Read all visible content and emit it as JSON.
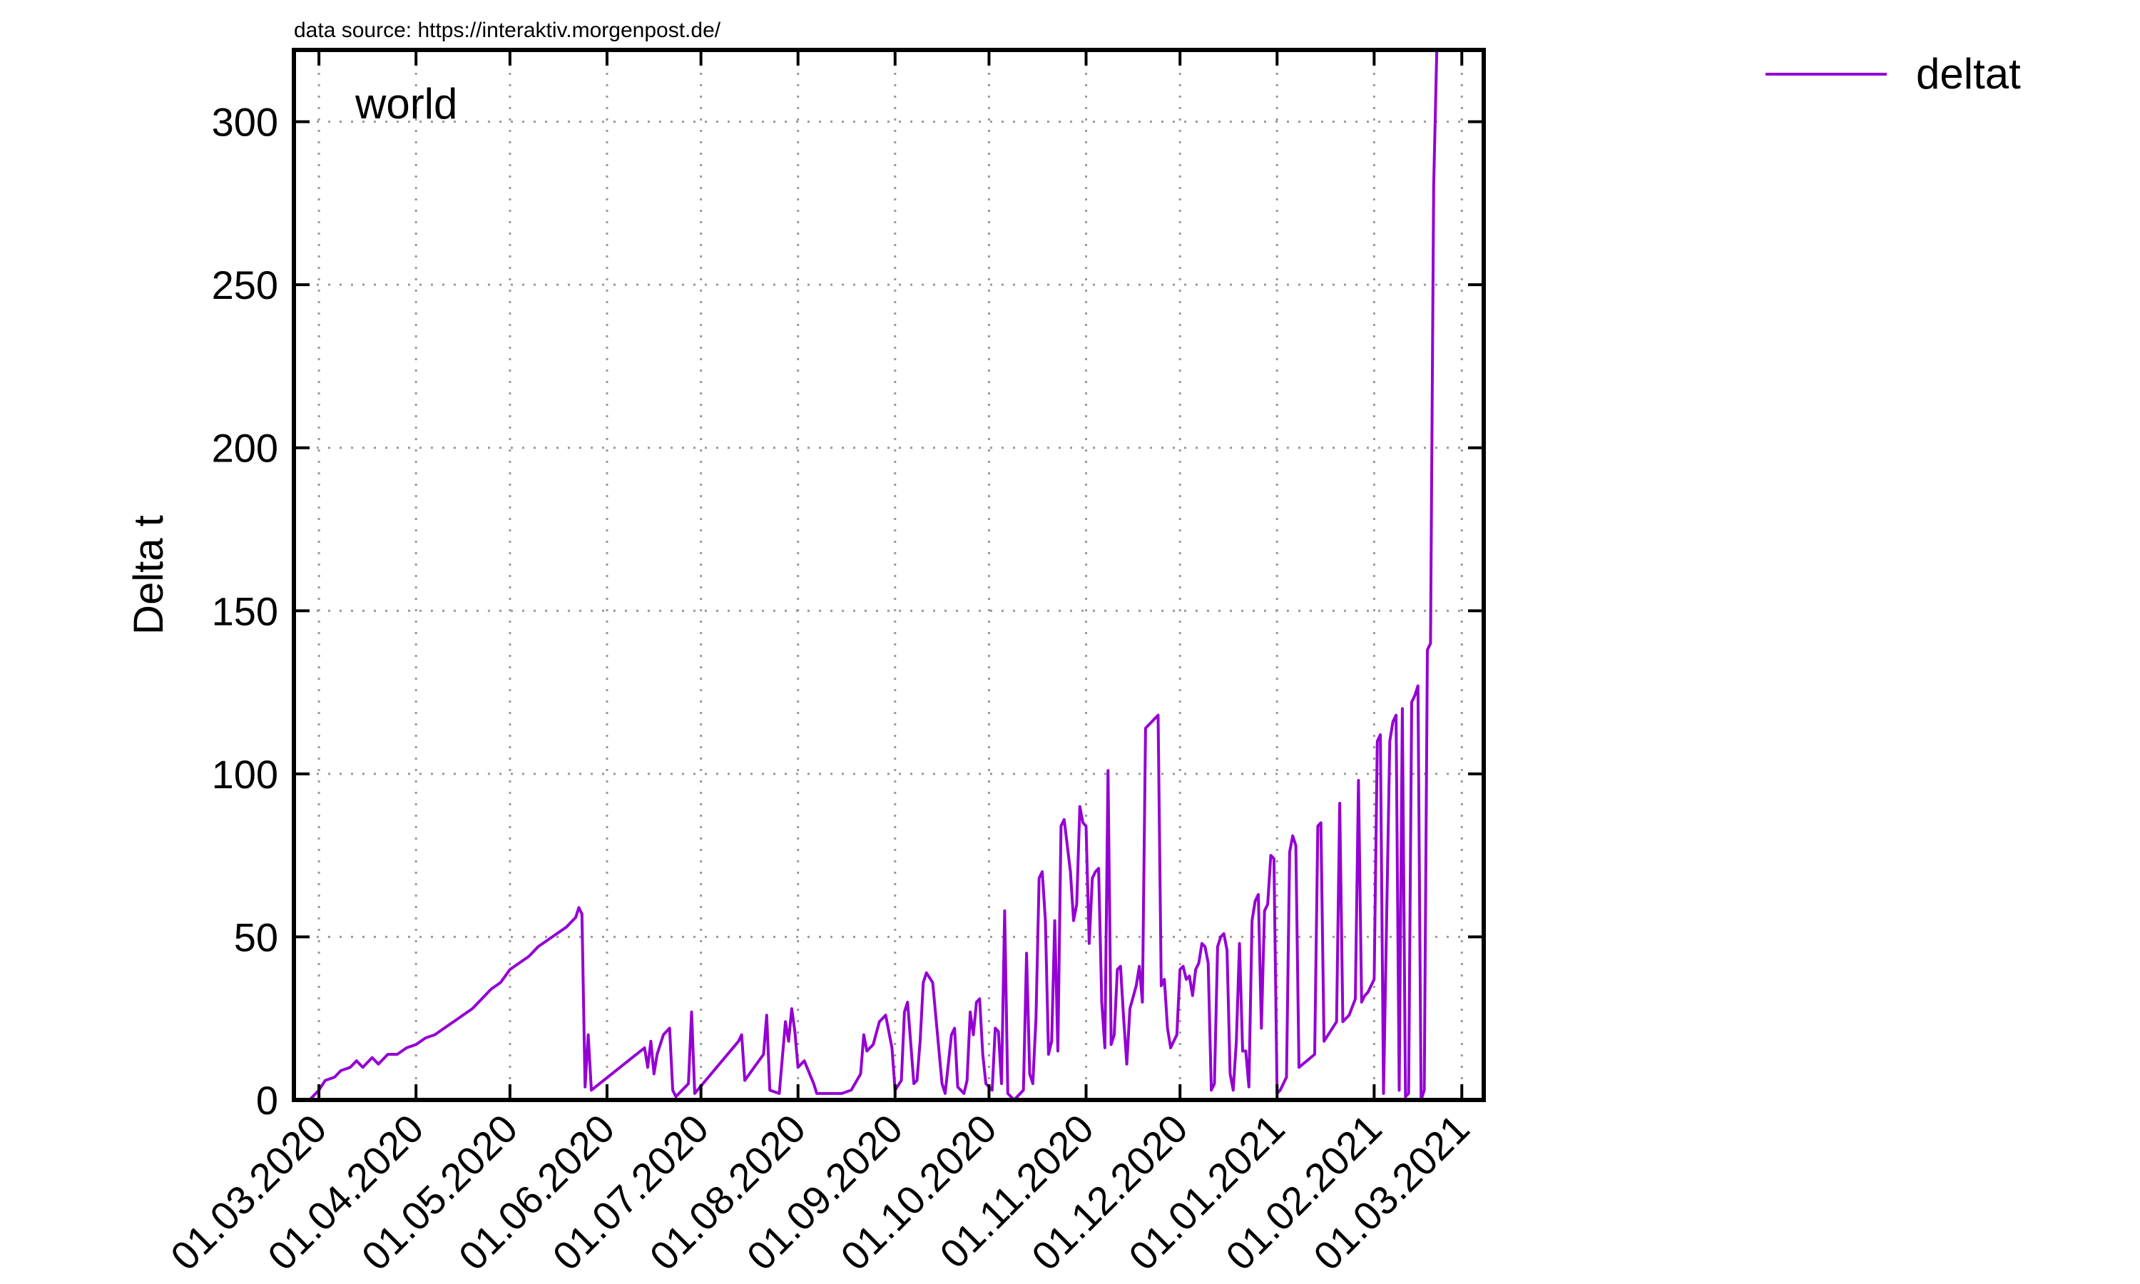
{
  "source_note": "data source: https://interaktiv.morgenpost.de/",
  "inset_label": "world",
  "chart_data": {
    "type": "line",
    "title": "",
    "xlabel": "",
    "ylabel": "Delta t",
    "x_type": "date",
    "xlim": [
      "2020-02-22",
      "2021-03-08"
    ],
    "ylim": [
      0,
      322
    ],
    "y_ticks": [
      0,
      50,
      100,
      150,
      200,
      250,
      300
    ],
    "x_tick_dates": [
      "2020-03-01",
      "2020-04-01",
      "2020-05-01",
      "2020-06-01",
      "2020-07-01",
      "2020-08-01",
      "2020-09-01",
      "2020-10-01",
      "2020-11-01",
      "2020-12-01",
      "2021-01-01",
      "2021-02-01",
      "2021-03-01"
    ],
    "x_tick_labels": [
      "01.03.2020",
      "01.04.2020",
      "01.05.2020",
      "01.06.2020",
      "01.07.2020",
      "01.08.2020",
      "01.09.2020",
      "01.10.2020",
      "01.11.2020",
      "01.12.2020",
      "01.01.2021",
      "01.02.2021",
      "01.03.2021"
    ],
    "grid": true,
    "grid_style": "dotted",
    "legend_position": "top-right, outside plot",
    "series": [
      {
        "name": "deltat",
        "color": "#9400d3",
        "points": [
          [
            "2020-02-27",
            0
          ],
          [
            "2020-03-01",
            3
          ],
          [
            "2020-03-03",
            6
          ],
          [
            "2020-03-06",
            7
          ],
          [
            "2020-03-08",
            9
          ],
          [
            "2020-03-11",
            10
          ],
          [
            "2020-03-13",
            12
          ],
          [
            "2020-03-15",
            10
          ],
          [
            "2020-03-18",
            13
          ],
          [
            "2020-03-20",
            11
          ],
          [
            "2020-03-23",
            14
          ],
          [
            "2020-03-26",
            14
          ],
          [
            "2020-03-29",
            16
          ],
          [
            "2020-04-01",
            17
          ],
          [
            "2020-04-04",
            19
          ],
          [
            "2020-04-07",
            20
          ],
          [
            "2020-04-10",
            22
          ],
          [
            "2020-04-13",
            24
          ],
          [
            "2020-04-16",
            26
          ],
          [
            "2020-04-19",
            28
          ],
          [
            "2020-04-22",
            31
          ],
          [
            "2020-04-25",
            34
          ],
          [
            "2020-04-28",
            36
          ],
          [
            "2020-05-01",
            40
          ],
          [
            "2020-05-04",
            42
          ],
          [
            "2020-05-07",
            44
          ],
          [
            "2020-05-10",
            47
          ],
          [
            "2020-05-13",
            49
          ],
          [
            "2020-05-16",
            51
          ],
          [
            "2020-05-19",
            53
          ],
          [
            "2020-05-22",
            56
          ],
          [
            "2020-05-23",
            59
          ],
          [
            "2020-05-24",
            57
          ],
          [
            "2020-05-25",
            4
          ],
          [
            "2020-05-26",
            20
          ],
          [
            "2020-05-27",
            3
          ],
          [
            "2020-06-13",
            16
          ],
          [
            "2020-06-14",
            10
          ],
          [
            "2020-06-15",
            18
          ],
          [
            "2020-06-16",
            8
          ],
          [
            "2020-06-17",
            14
          ],
          [
            "2020-06-19",
            20
          ],
          [
            "2020-06-21",
            22
          ],
          [
            "2020-06-22",
            3
          ],
          [
            "2020-06-23",
            1
          ],
          [
            "2020-06-27",
            5
          ],
          [
            "2020-06-28",
            27
          ],
          [
            "2020-06-29",
            2
          ],
          [
            "2020-07-13",
            18
          ],
          [
            "2020-07-14",
            20
          ],
          [
            "2020-07-15",
            6
          ],
          [
            "2020-07-21",
            14
          ],
          [
            "2020-07-22",
            26
          ],
          [
            "2020-07-23",
            3
          ],
          [
            "2020-07-26",
            2
          ],
          [
            "2020-07-28",
            24
          ],
          [
            "2020-07-29",
            18
          ],
          [
            "2020-07-30",
            28
          ],
          [
            "2020-07-31",
            21
          ],
          [
            "2020-08-01",
            10
          ],
          [
            "2020-08-03",
            12
          ],
          [
            "2020-08-06",
            5
          ],
          [
            "2020-08-07",
            2
          ],
          [
            "2020-08-15",
            2
          ],
          [
            "2020-08-18",
            3
          ],
          [
            "2020-08-21",
            8
          ],
          [
            "2020-08-22",
            20
          ],
          [
            "2020-08-23",
            15
          ],
          [
            "2020-08-25",
            17
          ],
          [
            "2020-08-27",
            24
          ],
          [
            "2020-08-29",
            26
          ],
          [
            "2020-08-31",
            16
          ],
          [
            "2020-09-01",
            3
          ],
          [
            "2020-09-03",
            6
          ],
          [
            "2020-09-04",
            27
          ],
          [
            "2020-09-05",
            30
          ],
          [
            "2020-09-07",
            5
          ],
          [
            "2020-09-08",
            6
          ],
          [
            "2020-09-09",
            18
          ],
          [
            "2020-09-10",
            36
          ],
          [
            "2020-09-11",
            39
          ],
          [
            "2020-09-13",
            36
          ],
          [
            "2020-09-16",
            5
          ],
          [
            "2020-09-17",
            2
          ],
          [
            "2020-09-19",
            20
          ],
          [
            "2020-09-20",
            22
          ],
          [
            "2020-09-21",
            4
          ],
          [
            "2020-09-23",
            2
          ],
          [
            "2020-09-24",
            6
          ],
          [
            "2020-09-25",
            27
          ],
          [
            "2020-09-26",
            20
          ],
          [
            "2020-09-27",
            30
          ],
          [
            "2020-09-28",
            31
          ],
          [
            "2020-09-29",
            14
          ],
          [
            "2020-09-30",
            5
          ],
          [
            "2020-10-02",
            3
          ],
          [
            "2020-10-03",
            22
          ],
          [
            "2020-10-04",
            21
          ],
          [
            "2020-10-05",
            5
          ],
          [
            "2020-10-06",
            58
          ],
          [
            "2020-10-07",
            2
          ],
          [
            "2020-10-09",
            0
          ],
          [
            "2020-10-12",
            3
          ],
          [
            "2020-10-13",
            45
          ],
          [
            "2020-10-14",
            8
          ],
          [
            "2020-10-15",
            5
          ],
          [
            "2020-10-16",
            25
          ],
          [
            "2020-10-17",
            68
          ],
          [
            "2020-10-18",
            70
          ],
          [
            "2020-10-19",
            55
          ],
          [
            "2020-10-20",
            14
          ],
          [
            "2020-10-21",
            18
          ],
          [
            "2020-10-22",
            55
          ],
          [
            "2020-10-23",
            15
          ],
          [
            "2020-10-24",
            84
          ],
          [
            "2020-10-25",
            86
          ],
          [
            "2020-10-27",
            70
          ],
          [
            "2020-10-28",
            55
          ],
          [
            "2020-10-29",
            60
          ],
          [
            "2020-10-30",
            90
          ],
          [
            "2020-10-31",
            85
          ],
          [
            "2020-11-01",
            84
          ],
          [
            "2020-11-02",
            48
          ],
          [
            "2020-11-03",
            68
          ],
          [
            "2020-11-04",
            70
          ],
          [
            "2020-11-05",
            71
          ],
          [
            "2020-11-06",
            30
          ],
          [
            "2020-11-07",
            16
          ],
          [
            "2020-11-08",
            101
          ],
          [
            "2020-11-09",
            17
          ],
          [
            "2020-11-10",
            20
          ],
          [
            "2020-11-11",
            40
          ],
          [
            "2020-11-12",
            41
          ],
          [
            "2020-11-13",
            25
          ],
          [
            "2020-11-14",
            11
          ],
          [
            "2020-11-15",
            28
          ],
          [
            "2020-11-17",
            35
          ],
          [
            "2020-11-18",
            41
          ],
          [
            "2020-11-19",
            30
          ],
          [
            "2020-11-20",
            114
          ],
          [
            "2020-11-21",
            115
          ],
          [
            "2020-11-22",
            116
          ],
          [
            "2020-11-23",
            117
          ],
          [
            "2020-11-24",
            118
          ],
          [
            "2020-11-25",
            35
          ],
          [
            "2020-11-26",
            37
          ],
          [
            "2020-11-27",
            22
          ],
          [
            "2020-11-28",
            16
          ],
          [
            "2020-11-29",
            18
          ],
          [
            "2020-11-30",
            20
          ],
          [
            "2020-12-01",
            40
          ],
          [
            "2020-12-02",
            41
          ],
          [
            "2020-12-03",
            37
          ],
          [
            "2020-12-04",
            38
          ],
          [
            "2020-12-05",
            32
          ],
          [
            "2020-12-06",
            40
          ],
          [
            "2020-12-07",
            42
          ],
          [
            "2020-12-08",
            48
          ],
          [
            "2020-12-09",
            47
          ],
          [
            "2020-12-10",
            42
          ],
          [
            "2020-12-11",
            3
          ],
          [
            "2020-12-12",
            5
          ],
          [
            "2020-12-13",
            47
          ],
          [
            "2020-12-14",
            50
          ],
          [
            "2020-12-15",
            51
          ],
          [
            "2020-12-16",
            46
          ],
          [
            "2020-12-17",
            8
          ],
          [
            "2020-12-18",
            3
          ],
          [
            "2020-12-19",
            18
          ],
          [
            "2020-12-20",
            48
          ],
          [
            "2020-12-21",
            15
          ],
          [
            "2020-12-22",
            15
          ],
          [
            "2020-12-23",
            4
          ],
          [
            "2020-12-24",
            55
          ],
          [
            "2020-12-25",
            61
          ],
          [
            "2020-12-26",
            63
          ],
          [
            "2020-12-27",
            22
          ],
          [
            "2020-12-28",
            58
          ],
          [
            "2020-12-29",
            60
          ],
          [
            "2020-12-30",
            75
          ],
          [
            "2020-12-31",
            74
          ],
          [
            "2021-01-01",
            2
          ],
          [
            "2021-01-02",
            3
          ],
          [
            "2021-01-03",
            5
          ],
          [
            "2021-01-04",
            7
          ],
          [
            "2021-01-05",
            76
          ],
          [
            "2021-01-06",
            81
          ],
          [
            "2021-01-07",
            78
          ],
          [
            "2021-01-08",
            10
          ],
          [
            "2021-01-13",
            14
          ],
          [
            "2021-01-14",
            84
          ],
          [
            "2021-01-15",
            85
          ],
          [
            "2021-01-16",
            18
          ],
          [
            "2021-01-20",
            24
          ],
          [
            "2021-01-21",
            91
          ],
          [
            "2021-01-22",
            24
          ],
          [
            "2021-01-24",
            26
          ],
          [
            "2021-01-26",
            31
          ],
          [
            "2021-01-27",
            98
          ],
          [
            "2021-01-28",
            30
          ],
          [
            "2021-01-29",
            32
          ],
          [
            "2021-01-30",
            33
          ],
          [
            "2021-01-31",
            35
          ],
          [
            "2021-02-01",
            37
          ],
          [
            "2021-02-02",
            110
          ],
          [
            "2021-02-03",
            112
          ],
          [
            "2021-02-04",
            2
          ],
          [
            "2021-02-06",
            110
          ],
          [
            "2021-02-07",
            116
          ],
          [
            "2021-02-08",
            118
          ],
          [
            "2021-02-09",
            3
          ],
          [
            "2021-02-10",
            120
          ],
          [
            "2021-02-11",
            1
          ],
          [
            "2021-02-12",
            2
          ],
          [
            "2021-02-13",
            122
          ],
          [
            "2021-02-14",
            124
          ],
          [
            "2021-02-15",
            127
          ],
          [
            "2021-02-16",
            0
          ],
          [
            "2021-02-17",
            3
          ],
          [
            "2021-02-18",
            138
          ],
          [
            "2021-02-19",
            140
          ],
          [
            "2021-02-20",
            280
          ],
          [
            "2021-02-21",
            322
          ]
        ]
      }
    ]
  }
}
